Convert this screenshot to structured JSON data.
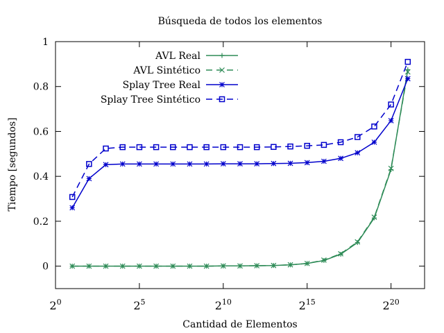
{
  "chart_data": {
    "type": "line",
    "title": "Búsqueda de todos los elementos",
    "xlabel": "Cantidad de Elementos",
    "ylabel": "Tiempo [segundos]",
    "x_scale": "log2",
    "xlim": [
      0,
      22
    ],
    "ylim": [
      -0.1,
      1.0
    ],
    "x_ticks": [
      {
        "value": 0,
        "base": "2",
        "exp": "0"
      },
      {
        "value": 5,
        "base": "2",
        "exp": "5"
      },
      {
        "value": 10,
        "base": "2",
        "exp": "10"
      },
      {
        "value": 15,
        "base": "2",
        "exp": "15"
      },
      {
        "value": 20,
        "base": "2",
        "exp": "20"
      }
    ],
    "y_ticks": [
      {
        "value": 0,
        "label": "0"
      },
      {
        "value": 0.2,
        "label": "0.2"
      },
      {
        "value": 0.4,
        "label": "0.4"
      },
      {
        "value": 0.6,
        "label": "0.6"
      },
      {
        "value": 0.8,
        "label": "0.8"
      },
      {
        "value": 1.0,
        "label": "1"
      }
    ],
    "grid": false,
    "legend_position": "top-left",
    "x": [
      1,
      2,
      3,
      4,
      5,
      6,
      7,
      8,
      9,
      10,
      11,
      12,
      13,
      14,
      15,
      16,
      17,
      18,
      19,
      20,
      21
    ],
    "series": [
      {
        "name": "AVL Real",
        "color": "#2e8b57",
        "dash": "solid",
        "marker": "plus",
        "values": [
          0,
          0,
          0,
          0,
          0,
          0,
          0,
          0,
          0,
          0.001,
          0.001,
          0.002,
          0.003,
          0.006,
          0.012,
          0.025,
          0.053,
          0.105,
          0.215,
          0.43,
          0.875
        ]
      },
      {
        "name": "AVL Sintético",
        "color": "#2e8b57",
        "dash": "dashed",
        "marker": "cross",
        "values": [
          0,
          0,
          0,
          0,
          0,
          0,
          0,
          0,
          0,
          0.001,
          0.001,
          0.002,
          0.003,
          0.006,
          0.012,
          0.027,
          0.055,
          0.108,
          0.218,
          0.435,
          0.865
        ]
      },
      {
        "name": "Splay Tree Real",
        "color": "#0000cc",
        "dash": "solid",
        "marker": "star",
        "values": [
          0.26,
          0.39,
          0.452,
          0.455,
          0.455,
          0.455,
          0.455,
          0.455,
          0.455,
          0.456,
          0.456,
          0.456,
          0.457,
          0.458,
          0.461,
          0.467,
          0.48,
          0.505,
          0.552,
          0.648,
          0.835
        ]
      },
      {
        "name": "Splay Tree Sintético",
        "color": "#0000cc",
        "dash": "dashed",
        "marker": "square",
        "values": [
          0.308,
          0.455,
          0.524,
          0.53,
          0.53,
          0.53,
          0.53,
          0.53,
          0.53,
          0.53,
          0.53,
          0.53,
          0.531,
          0.533,
          0.536,
          0.54,
          0.552,
          0.575,
          0.622,
          0.72,
          0.91
        ]
      }
    ]
  }
}
